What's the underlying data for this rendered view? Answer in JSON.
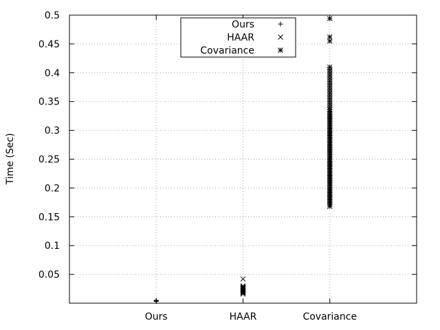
{
  "chart_data": {
    "type": "scatter",
    "title": "",
    "xlabel": "",
    "ylabel": "Time (Sec)",
    "categories": [
      "Ours",
      "HAAR",
      "Covariance"
    ],
    "xlim": [
      0,
      4
    ],
    "ylim": [
      0,
      0.5
    ],
    "yticks": [
      0.05,
      0.1,
      0.15,
      0.2,
      0.25,
      0.3,
      0.35,
      0.4,
      0.45,
      0.5
    ],
    "ytick_labels": [
      "0.05",
      "0.1",
      "0.15",
      "0.2",
      "0.25",
      "0.3",
      "0.35",
      "0.4",
      "0.45",
      "0.5"
    ],
    "grid": true,
    "legend_position": "top-center",
    "series": [
      {
        "name": "Ours",
        "marker": "plus",
        "x": 1,
        "values": [
          0.003,
          0.004,
          0.005
        ]
      },
      {
        "name": "HAAR",
        "marker": "cross",
        "x": 2,
        "values": [
          0.016,
          0.018,
          0.019,
          0.02,
          0.021,
          0.022,
          0.023,
          0.024,
          0.025,
          0.026,
          0.027,
          0.028,
          0.03,
          0.042
        ]
      },
      {
        "name": "Covariance",
        "marker": "star",
        "x": 3,
        "values": [
          0.168,
          0.171,
          0.174,
          0.177,
          0.18,
          0.183,
          0.186,
          0.189,
          0.192,
          0.195,
          0.198,
          0.201,
          0.204,
          0.207,
          0.21,
          0.213,
          0.216,
          0.219,
          0.222,
          0.225,
          0.228,
          0.231,
          0.234,
          0.237,
          0.24,
          0.243,
          0.246,
          0.249,
          0.252,
          0.255,
          0.258,
          0.261,
          0.264,
          0.267,
          0.27,
          0.273,
          0.276,
          0.279,
          0.282,
          0.285,
          0.288,
          0.291,
          0.294,
          0.297,
          0.3,
          0.303,
          0.306,
          0.309,
          0.312,
          0.315,
          0.318,
          0.321,
          0.324,
          0.327,
          0.33,
          0.333,
          0.336,
          0.34,
          0.345,
          0.35,
          0.355,
          0.36,
          0.365,
          0.37,
          0.375,
          0.38,
          0.385,
          0.39,
          0.395,
          0.4,
          0.405,
          0.41,
          0.455,
          0.462,
          0.494
        ]
      }
    ]
  }
}
